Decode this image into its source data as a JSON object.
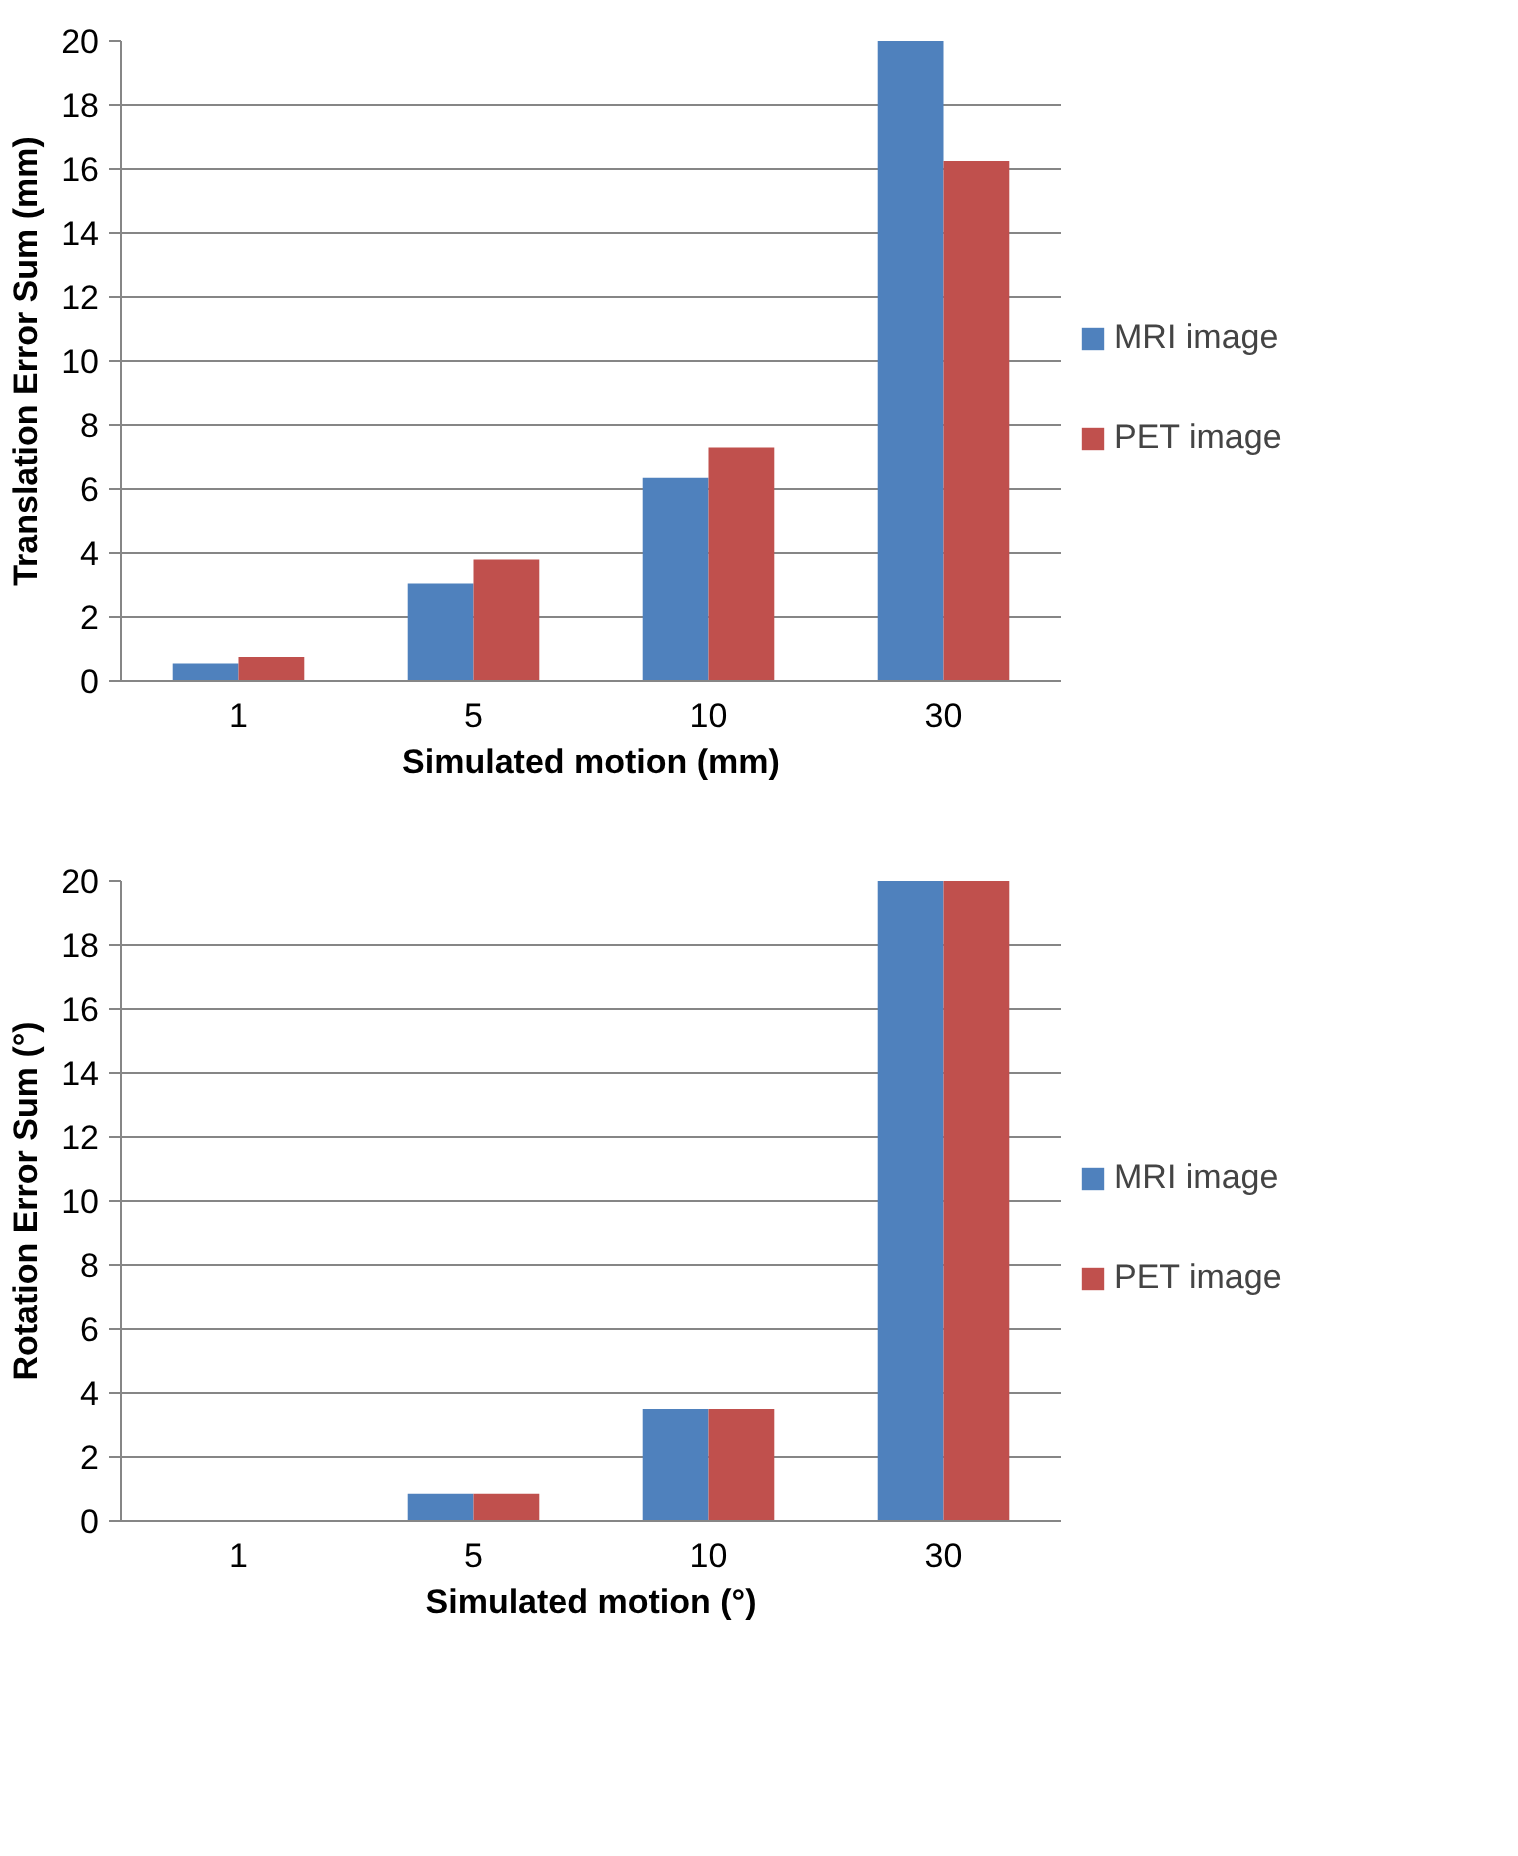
{
  "chart_data": [
    {
      "type": "bar",
      "categories": [
        "1",
        "5",
        "10",
        "30"
      ],
      "xlabel": "Simulated motion (mm)",
      "ylabel": "Translation Error Sum (mm)",
      "ylim": [
        0,
        20
      ],
      "yticks": [
        0,
        2,
        4,
        6,
        8,
        10,
        12,
        14,
        16,
        18,
        20
      ],
      "grid": "y",
      "legend": "right",
      "series": [
        {
          "name": "MRI image",
          "color": "#4f81bd",
          "values": [
            0.55,
            3.05,
            6.35,
            20
          ]
        },
        {
          "name": "PET image",
          "color": "#c0504d",
          "values": [
            0.75,
            3.8,
            7.3,
            16.25
          ]
        }
      ]
    },
    {
      "type": "bar",
      "categories": [
        "1",
        "5",
        "10",
        "30"
      ],
      "xlabel": "Simulated motion (°)",
      "ylabel": "Rotation Error Sum (°)",
      "ylim": [
        0,
        20
      ],
      "yticks": [
        0,
        2,
        4,
        6,
        8,
        10,
        12,
        14,
        16,
        18,
        20
      ],
      "grid": "y",
      "legend": "right",
      "series": [
        {
          "name": "MRI image",
          "color": "#4f81bd",
          "values": [
            0,
            0.85,
            3.5,
            20
          ]
        },
        {
          "name": "PET image",
          "color": "#c0504d",
          "values": [
            0,
            0.85,
            3.5,
            20
          ]
        }
      ]
    }
  ]
}
